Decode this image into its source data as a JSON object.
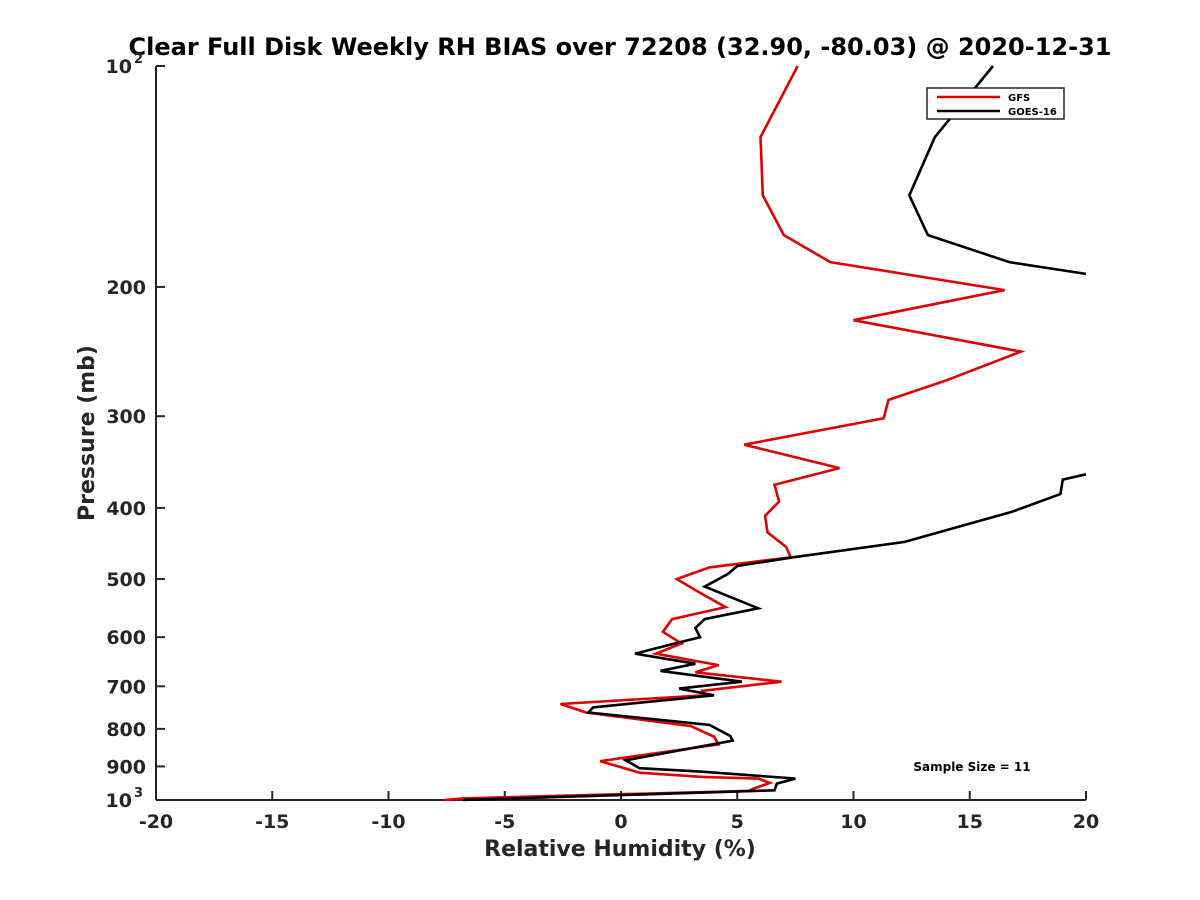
{
  "chart_data": {
    "type": "line",
    "title": "Clear Full Disk Weekly RH BIAS over 72208 (32.90, -80.03) @ 2020-12-31",
    "xlabel": "Relative Humidity (%)",
    "ylabel": "Pressure (mb)",
    "xlim": [
      -20,
      20
    ],
    "ylim": [
      100,
      1000
    ],
    "y_scale": "log",
    "y_reversed": true,
    "grid": false,
    "legend_position": "top-right",
    "annotation": "Sample Size = 11",
    "x_ticks": [
      "-20",
      "-15",
      "-10",
      "-5",
      "0",
      "5",
      "10",
      "15",
      "20"
    ],
    "y_ticks": [
      {
        "value": 100,
        "base": "10",
        "exp": "2"
      },
      {
        "value": 200,
        "label": "200"
      },
      {
        "value": 300,
        "label": "300"
      },
      {
        "value": 400,
        "label": "400"
      },
      {
        "value": 500,
        "label": "500"
      },
      {
        "value": 600,
        "label": "600"
      },
      {
        "value": 700,
        "label": "700"
      },
      {
        "value": 800,
        "label": "800"
      },
      {
        "value": 900,
        "label": "900"
      },
      {
        "value": 1000,
        "base": "10",
        "exp": "3"
      }
    ],
    "series": [
      {
        "name": "GFS",
        "color": "#e00000",
        "points": [
          [
            7.6,
            100
          ],
          [
            6.0,
            125
          ],
          [
            6.1,
            150
          ],
          [
            7.0,
            170
          ],
          [
            9.0,
            185
          ],
          [
            16.5,
            202
          ],
          [
            10.0,
            222
          ],
          [
            17.2,
            245
          ],
          [
            14.0,
            268
          ],
          [
            11.5,
            285
          ],
          [
            11.3,
            302
          ],
          [
            5.3,
            328
          ],
          [
            9.4,
            353
          ],
          [
            6.6,
            372
          ],
          [
            6.8,
            392
          ],
          [
            6.2,
            410
          ],
          [
            6.3,
            432
          ],
          [
            7.1,
            452
          ],
          [
            7.3,
            467
          ],
          [
            3.8,
            482
          ],
          [
            2.4,
            500
          ],
          [
            3.3,
            520
          ],
          [
            4.5,
            546
          ],
          [
            2.2,
            567
          ],
          [
            1.8,
            590
          ],
          [
            2.6,
            612
          ],
          [
            1.5,
            632
          ],
          [
            4.2,
            655
          ],
          [
            3.2,
            670
          ],
          [
            6.9,
            690
          ],
          [
            3.5,
            710
          ],
          [
            3.6,
            720
          ],
          [
            -2.6,
            740
          ],
          [
            -1.5,
            760
          ],
          [
            3.0,
            793
          ],
          [
            4.0,
            820
          ],
          [
            4.2,
            840
          ],
          [
            -0.9,
            885
          ],
          [
            0.8,
            918
          ],
          [
            3.5,
            930
          ],
          [
            5.9,
            935
          ],
          [
            6.4,
            948
          ],
          [
            5.7,
            965
          ],
          [
            5.5,
            972
          ],
          [
            -6.8,
            995
          ],
          [
            -7.6,
            1000
          ]
        ]
      },
      {
        "name": "GOES-16",
        "color": "#000000",
        "points": [
          [
            16.0,
            100
          ],
          [
            13.5,
            125
          ],
          [
            12.4,
            150
          ],
          [
            13.2,
            170
          ],
          [
            16.7,
            185
          ],
          [
            20.0,
            192
          ],
          [
            null,
            192
          ],
          [
            20.0,
            360
          ],
          [
            19.0,
            366
          ],
          [
            18.9,
            383
          ],
          [
            16.8,
            405
          ],
          [
            12.2,
            445
          ],
          [
            7.4,
            467
          ],
          [
            5.0,
            480
          ],
          [
            4.6,
            492
          ],
          [
            3.6,
            512
          ],
          [
            5.9,
            548
          ],
          [
            3.6,
            567
          ],
          [
            3.2,
            583
          ],
          [
            3.4,
            600
          ],
          [
            2.5,
            610
          ],
          [
            0.6,
            632
          ],
          [
            3.2,
            652
          ],
          [
            1.7,
            667
          ],
          [
            5.2,
            690
          ],
          [
            2.5,
            705
          ],
          [
            4.0,
            720
          ],
          [
            -1.2,
            748
          ],
          [
            -1.4,
            760
          ],
          [
            3.8,
            790
          ],
          [
            4.7,
            818
          ],
          [
            4.8,
            830
          ],
          [
            0.2,
            883
          ],
          [
            0.8,
            905
          ],
          [
            3.5,
            915
          ],
          [
            7.5,
            935
          ],
          [
            6.7,
            950
          ],
          [
            6.6,
            970
          ],
          [
            -6.8,
            1000
          ]
        ]
      }
    ]
  }
}
